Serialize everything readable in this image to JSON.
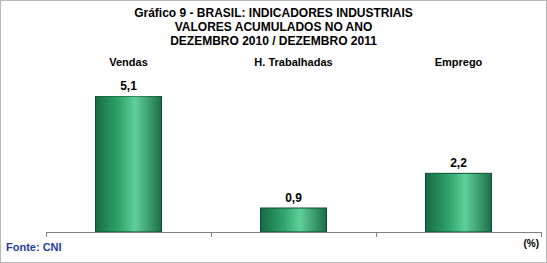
{
  "chart_data": {
    "type": "bar",
    "title": [
      "Gráfico 9 - BRASIL: INDICADORES  INDUSTRIAIS",
      "VALORES ACUMULADOS  NO ANO",
      "DEZEMBRO 2010 / DEZEMBRO 2011"
    ],
    "categories": [
      "Vendas",
      "H. Trabalhadas",
      "Emprego"
    ],
    "values": [
      5.1,
      0.9,
      2.2
    ],
    "value_labels": [
      "5,1",
      "0,9",
      "2,2"
    ],
    "color": "#2fa36b",
    "ylim": [
      0,
      5.1
    ],
    "tick_labels": false,
    "data_labels": true,
    "grid": false,
    "ylabel": "(%)",
    "source": "Fonte: CNI"
  }
}
